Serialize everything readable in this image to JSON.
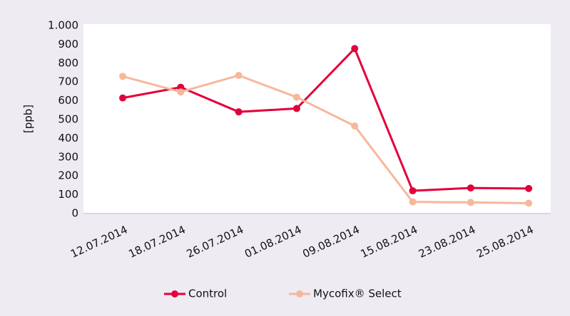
{
  "chart_data": {
    "type": "line",
    "y_label": "[ppb]",
    "categories": [
      "12.07.2014",
      "18.07.2014",
      "26.07.2014",
      "01.08.2014",
      "09.08.2014",
      "15.08.2014",
      "23.08.2014",
      "25.08.2014"
    ],
    "series": [
      {
        "name": "Control",
        "color": "#e2003c",
        "values": [
          615,
          672,
          541,
          559,
          878,
          121,
          136,
          133
        ]
      },
      {
        "name": "Mycofix® Select",
        "color": "#f6b89b",
        "values": [
          730,
          647,
          735,
          619,
          466,
          62,
          59,
          55
        ]
      }
    ],
    "ylim": [
      0,
      1000
    ],
    "yticks": [
      0,
      100,
      200,
      300,
      400,
      500,
      600,
      700,
      800,
      900,
      {
        "value": 1000,
        "label": "1.000"
      }
    ],
    "grid": false,
    "legend": "bottom"
  }
}
